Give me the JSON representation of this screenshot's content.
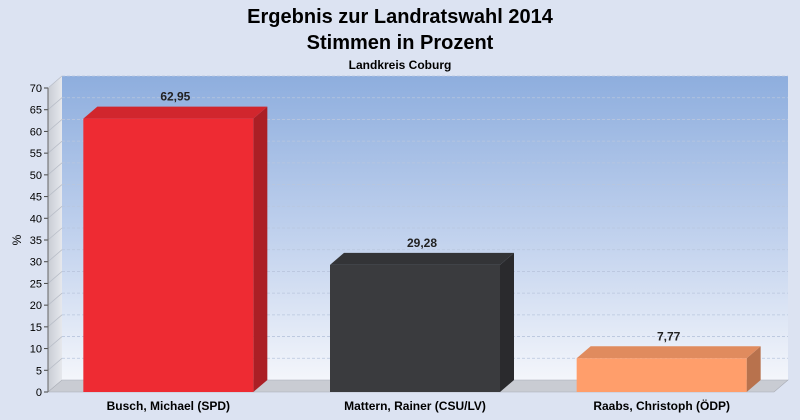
{
  "chart_data": {
    "type": "bar",
    "title_lines": [
      "Ergebnis zur Landratswahl 2014",
      "Stimmen in Prozent"
    ],
    "subtitle": "Landkreis Coburg",
    "ylabel": "%",
    "ylim": [
      0,
      70
    ],
    "yticks": [
      0,
      5,
      10,
      15,
      20,
      25,
      30,
      35,
      40,
      45,
      50,
      55,
      60,
      65,
      70
    ],
    "grid": true,
    "categories": [
      "Busch, Michael (SPD)",
      "Mattern, Rainer (CSU/LV)",
      "Raabs, Christoph (ÖDP)"
    ],
    "values": [
      62.95,
      29.28,
      7.77
    ],
    "value_labels": [
      "62,95",
      "29,28",
      "7,77"
    ],
    "colors": [
      "#ee2b33",
      "#3a3b3e",
      "#ff9e6b"
    ]
  }
}
